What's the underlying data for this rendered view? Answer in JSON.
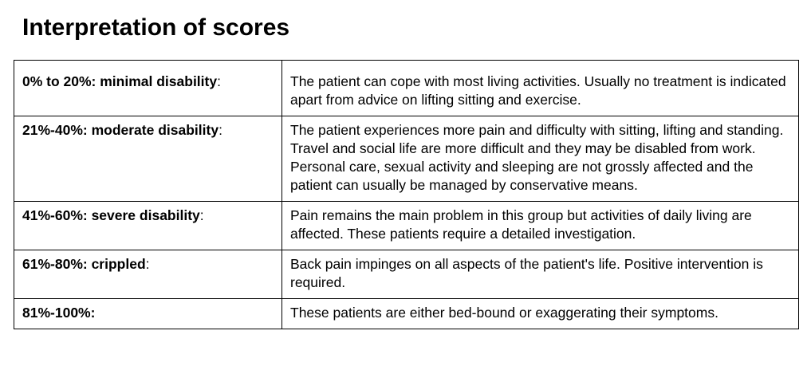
{
  "title": "Interpretation of scores",
  "rows": [
    {
      "range": "0% to 20%: minimal disability",
      "suffix": ":",
      "description": "The patient can cope with most living activities. Usually no treatment is indicated apart from advice on lifting sitting and exercise."
    },
    {
      "range": "21%-40%: moderate disability",
      "suffix": ":",
      "description": "The patient experiences more pain and difficulty with sitting, lifting and standing. Travel and social life are more difficult and they may be disabled from work. Personal care, sexual activity and sleeping are not grossly affected and the patient can usually be managed by conservative means."
    },
    {
      "range": "41%-60%: severe disability",
      "suffix": ":",
      "description": "Pain remains the main problem in this group but activities of daily living are affected. These patients require a detailed investigation."
    },
    {
      "range": "61%-80%: crippled",
      "suffix": ":",
      "description": "Back pain impinges on all aspects of the patient's life. Positive intervention is required."
    },
    {
      "range": "81%-100%:",
      "suffix": "",
      "description": "These patients are either bed-bound or exaggerating their symptoms."
    }
  ]
}
